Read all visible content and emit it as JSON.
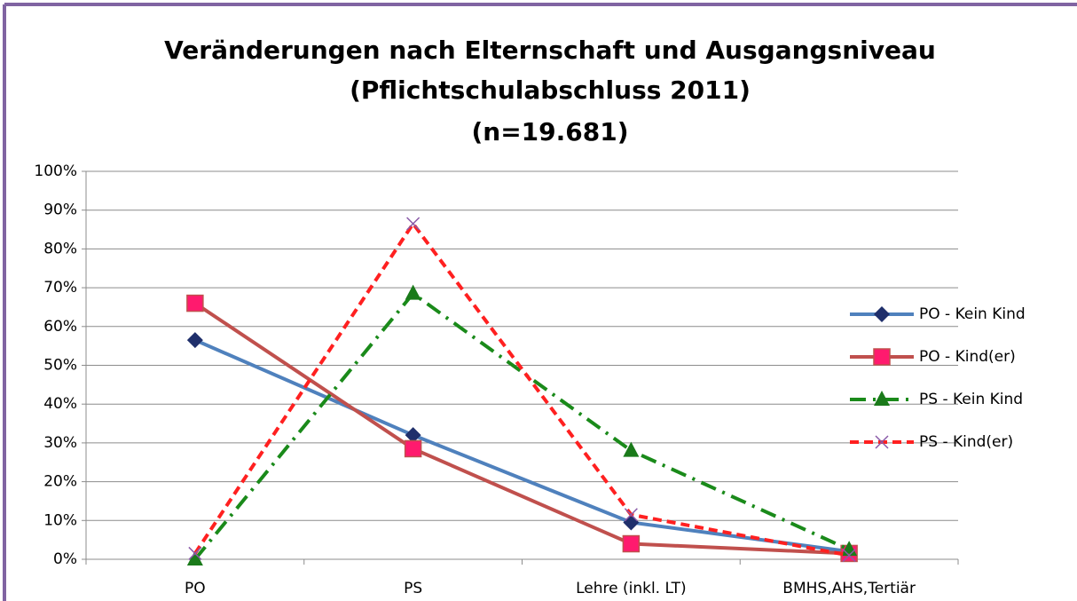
{
  "chart_data": {
    "type": "line",
    "title": [
      "Veränderungen nach Elternschaft und Ausgangsniveau",
      "(Pflichtschulabschluss 2011)",
      "(n=19.681)"
    ],
    "categories": [
      "PO",
      "PS",
      "Lehre (inkl. LT)",
      "BMHS,AHS,Tertiär"
    ],
    "series": [
      {
        "name": "PO - Kein Kind",
        "color": "#4f81bd",
        "marker_color": "#1f2f6b",
        "marker": "diamond",
        "dash": "solid",
        "values": [
          56.5,
          32,
          9.5,
          2
        ]
      },
      {
        "name": "PO - Kind(er)",
        "color": "#c0504d",
        "marker_color": "#ff1a6e",
        "marker": "square",
        "dash": "solid",
        "values": [
          66,
          28.5,
          4,
          1.5
        ]
      },
      {
        "name": "PS - Kein Kind",
        "color": "#1a8a1a",
        "marker_color": "#1a7a1a",
        "marker": "triangle",
        "dash": "dash-dot",
        "values": [
          0,
          68.5,
          28,
          2.5
        ]
      },
      {
        "name": "PS - Kind(er)",
        "color": "#ff2020",
        "marker_color": "#8a5aa8",
        "marker": "x",
        "dash": "dash",
        "values": [
          1.5,
          86.5,
          11.5,
          1
        ]
      }
    ],
    "ylim": [
      0,
      100
    ],
    "yticks": [
      {
        "value": 0,
        "label": "0%"
      },
      {
        "value": 10,
        "label": "10%"
      },
      {
        "value": 20,
        "label": "20%"
      },
      {
        "value": 30,
        "label": "30%"
      },
      {
        "value": 40,
        "label": "40%"
      },
      {
        "value": 50,
        "label": "50%"
      },
      {
        "value": 60,
        "label": "60%"
      },
      {
        "value": 70,
        "label": "70%"
      },
      {
        "value": 80,
        "label": "80%"
      },
      {
        "value": 90,
        "label": "90%"
      },
      {
        "value": 100,
        "label": "100%"
      }
    ],
    "grid": true,
    "legend": "right"
  }
}
